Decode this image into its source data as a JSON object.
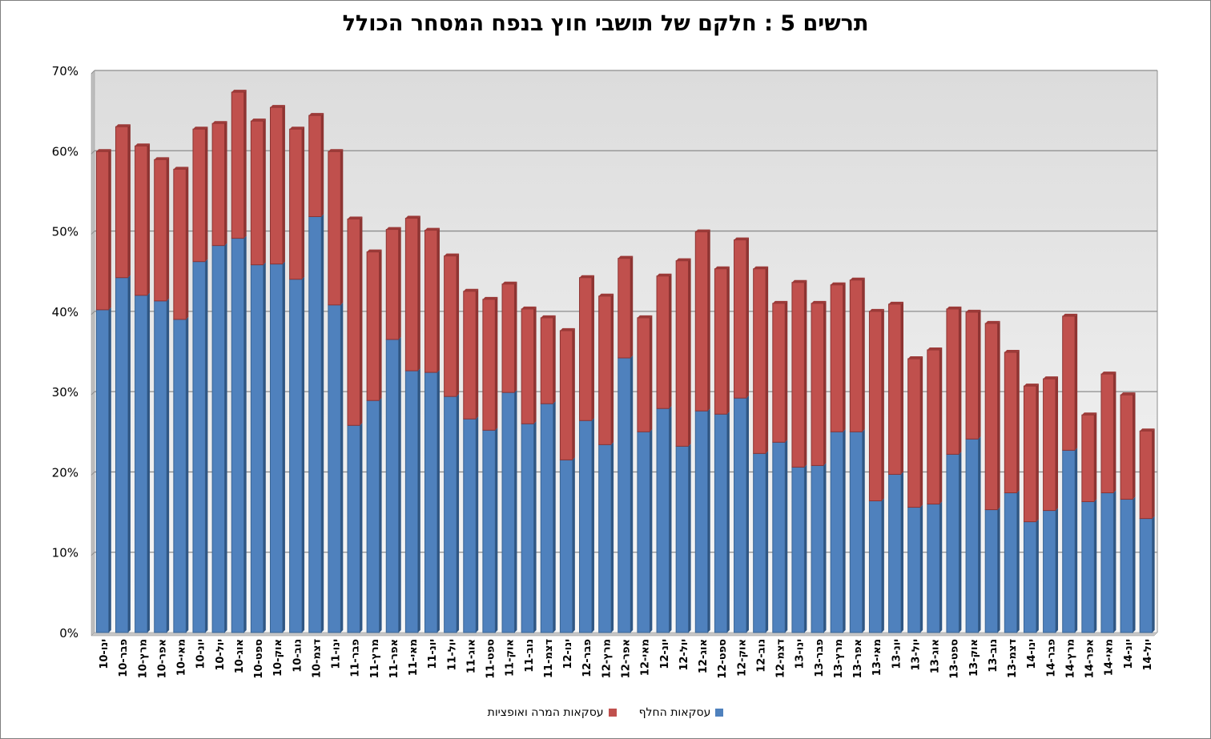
{
  "chart_data": {
    "type": "bar",
    "stacked": true,
    "title": "תרשים 5 : חלקם של תושבי חוץ בנפח המסחר הכולל",
    "xlabel": "",
    "ylabel": "",
    "ylim": [
      0,
      70
    ],
    "y_ticks": [
      "0%",
      "10%",
      "20%",
      "30%",
      "40%",
      "50%",
      "60%",
      "70%"
    ],
    "grid": true,
    "legend_position": "bottom",
    "categories": [
      "ינו-10",
      "פבר-10",
      "מרץ-10",
      "אפר-10",
      "מאי-10",
      "יונ-10",
      "יול-10",
      "אוג-10",
      "ספט-10",
      "אוק-10",
      "נוב-10",
      "דצמ-10",
      "ינו-11",
      "פבר-11",
      "מרץ-11",
      "אפר-11",
      "מאי-11",
      "יונ-11",
      "יול-11",
      "אוג-11",
      "ספט-11",
      "אוק-11",
      "נוב-11",
      "דצמ-11",
      "ינו-12",
      "פבר-12",
      "מרץ-12",
      "אפר-12",
      "מאי-12",
      "יונ-12",
      "יול-12",
      "אוג-12",
      "ספט-12",
      "אוק-12",
      "נוב-12",
      "דצמ-12",
      "ינו-13",
      "פבר-13",
      "מרץ-13",
      "אפר-13",
      "מאי-13",
      "יונ-13",
      "יול-13",
      "אוג-13",
      "ספט-13",
      "אוק-13",
      "נוב-13",
      "דצמ-13",
      "ינו-14",
      "פבר-14",
      "מרץ-14",
      "אפר-14",
      "מאי-14",
      "יונ-14",
      "יול-14"
    ],
    "series": [
      {
        "name": "עסקאות החלף",
        "color": "#4f81bd",
        "values": [
          40.2,
          44.2,
          42.0,
          41.3,
          39.0,
          46.2,
          48.2,
          49.1,
          45.8,
          45.9,
          44.0,
          51.8,
          40.8,
          25.8,
          28.9,
          36.5,
          32.6,
          32.4,
          29.4,
          26.6,
          25.2,
          29.9,
          26.0,
          28.5,
          21.5,
          26.4,
          23.4,
          34.2,
          25.0,
          27.9,
          23.2,
          27.6,
          27.2,
          29.2,
          22.3,
          23.7,
          20.6,
          20.8,
          25.0,
          25.0,
          16.4,
          19.7,
          15.6,
          16.0,
          22.2,
          24.1,
          15.3,
          17.4,
          13.8,
          15.2,
          22.7,
          16.3,
          17.4,
          16.6,
          14.2
        ]
      },
      {
        "name": "עסקאות המרה ואופציות",
        "color": "#c0504d",
        "values": [
          19.7,
          18.8,
          18.6,
          17.6,
          18.7,
          16.5,
          15.2,
          18.2,
          17.9,
          19.5,
          18.7,
          12.6,
          19.1,
          25.7,
          18.5,
          13.7,
          19.0,
          17.7,
          17.5,
          15.9,
          16.3,
          13.5,
          14.3,
          10.7,
          16.1,
          17.8,
          18.5,
          12.4,
          14.2,
          16.5,
          23.1,
          22.3,
          18.1,
          19.7,
          23.0,
          17.3,
          23.0,
          20.2,
          18.3,
          18.9,
          23.6,
          21.2,
          18.5,
          19.2,
          18.1,
          15.8,
          23.2,
          17.5,
          16.9,
          16.4,
          16.7,
          10.8,
          14.8,
          13.0,
          10.9
        ]
      }
    ]
  }
}
